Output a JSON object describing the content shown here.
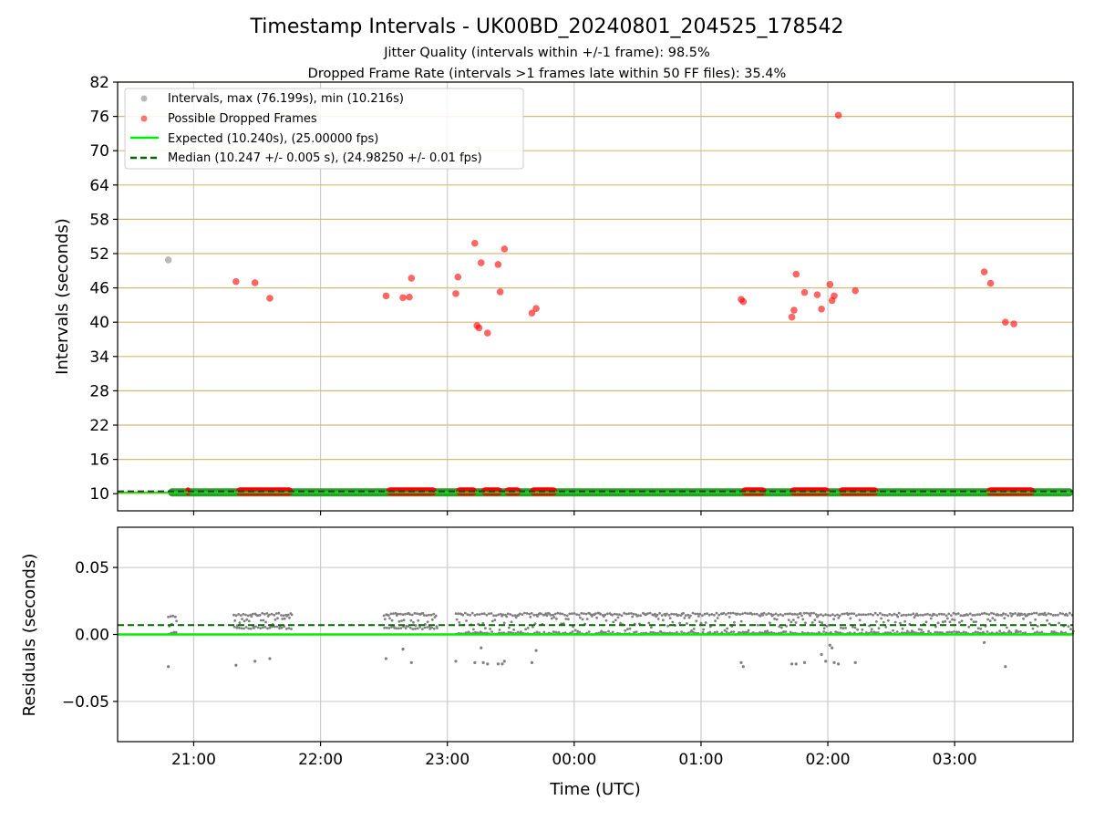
{
  "figure": {
    "title": "Timestamp Intervals - UK00BD_20240801_204525_178542",
    "subtitle1": "Jitter Quality (intervals within +/-1 frame): 98.5%",
    "subtitle2": "Dropped Frame Rate (intervals >1 frames late within 50 FF files): 35.4%",
    "xlabel": "Time (UTC)"
  },
  "colors": {
    "intervals": "#808080",
    "dropped": "#ff0000",
    "expected": "#00ee00",
    "median": "#006400",
    "hgrid": "#d9b978",
    "vgrid": "#cccccc",
    "green_band": "#2ca02c"
  },
  "chart_data": [
    {
      "type": "scatter",
      "ylabel": "Intervals (seconds)",
      "ylim": [
        7,
        82
      ],
      "yticks": [
        10,
        16,
        22,
        28,
        34,
        40,
        46,
        52,
        58,
        64,
        70,
        76,
        82
      ],
      "xlim": [
        "20:24",
        "03:56"
      ],
      "xticks": [
        "21:00",
        "22:00",
        "23:00",
        "00:00",
        "01:00",
        "02:00",
        "03:00"
      ],
      "grid": true,
      "legend_position": "upper-left",
      "legend": [
        "Intervals, max (76.199s), min (10.216s)",
        "Possible Dropped Frames",
        "Expected (10.240s), (25.00000 fps)",
        "Median (10.247 +/- 0.005 s), (24.98250 +/- 0.01 fps)"
      ],
      "expected": 10.24,
      "median": 10.247,
      "series": [
        {
          "name": "Intervals, max (76.199s), min (10.216s)",
          "points": [
            [
              "20:48",
              50.9
            ]
          ],
          "baseline_ranges": [
            [
              "20:48",
              "03:56",
              10.24
            ]
          ]
        },
        {
          "name": "Possible Dropped Frames",
          "points": [
            [
              "21:20",
              47.1
            ],
            [
              "21:29",
              46.9
            ],
            [
              "21:36",
              44.2
            ],
            [
              "22:31",
              44.6
            ],
            [
              "22:39",
              44.3
            ],
            [
              "22:42",
              44.4
            ],
            [
              "22:43",
              47.7
            ],
            [
              "23:04",
              45.0
            ],
            [
              "23:05",
              47.9
            ],
            [
              "23:13",
              53.8
            ],
            [
              "23:14",
              39.4
            ],
            [
              "23:15",
              39.0
            ],
            [
              "23:16",
              50.4
            ],
            [
              "23:19",
              38.1
            ],
            [
              "23:24",
              50.1
            ],
            [
              "23:25",
              45.3
            ],
            [
              "23:27",
              52.8
            ],
            [
              "23:40",
              41.6
            ],
            [
              "23:42",
              42.4
            ],
            [
              "01:19",
              44.0
            ],
            [
              "01:20",
              43.6
            ],
            [
              "01:43",
              40.9
            ],
            [
              "01:44",
              42.1
            ],
            [
              "01:45",
              48.4
            ],
            [
              "01:49",
              45.2
            ],
            [
              "01:55",
              44.8
            ],
            [
              "01:57",
              42.3
            ],
            [
              "02:01",
              46.6
            ],
            [
              "02:02",
              43.8
            ],
            [
              "02:03",
              44.6
            ],
            [
              "02:05",
              76.2
            ],
            [
              "02:13",
              45.5
            ],
            [
              "03:14",
              48.8
            ],
            [
              "03:17",
              46.8
            ],
            [
              "03:24",
              40.0
            ],
            [
              "03:28",
              39.7
            ]
          ],
          "baseline_ranges": [
            [
              "20:56",
              "20:58",
              10.4
            ],
            [
              "21:20",
              "21:47",
              10.4
            ],
            [
              "22:31",
              "22:55",
              10.4
            ],
            [
              "23:04",
              "23:14",
              10.4
            ],
            [
              "23:16",
              "23:26",
              10.4
            ],
            [
              "23:27",
              "23:35",
              10.4
            ],
            [
              "23:39",
              "23:52",
              10.4
            ],
            [
              "01:19",
              "01:31",
              10.4
            ],
            [
              "01:42",
              "02:01",
              10.4
            ],
            [
              "02:05",
              "02:24",
              10.4
            ],
            [
              "03:15",
              "03:38",
              10.4
            ]
          ]
        }
      ]
    },
    {
      "type": "scatter",
      "ylabel": "Residuals (seconds)",
      "ylim": [
        -0.08,
        0.08
      ],
      "yticks": [
        0.05,
        0.0,
        -0.05
      ],
      "ytick_labels": [
        "0.05",
        "0.00",
        "−0.05"
      ],
      "xlim": [
        "20:24",
        "03:56"
      ],
      "xticks": [
        "21:00",
        "22:00",
        "23:00",
        "00:00",
        "01:00",
        "02:00",
        "03:00"
      ],
      "grid": true,
      "expected": 0.0,
      "median": 0.007,
      "series": [
        {
          "name": "Residuals",
          "points": [
            [
              "20:48",
              -0.024
            ],
            [
              "21:20",
              -0.023
            ],
            [
              "21:29",
              -0.02
            ],
            [
              "21:36",
              -0.018
            ],
            [
              "22:31",
              -0.018
            ],
            [
              "22:39",
              -0.011
            ],
            [
              "22:43",
              -0.021
            ],
            [
              "23:04",
              -0.02
            ],
            [
              "23:13",
              -0.021
            ],
            [
              "23:16",
              -0.01
            ],
            [
              "23:17",
              -0.021
            ],
            [
              "23:19",
              -0.022
            ],
            [
              "23:24",
              -0.022
            ],
            [
              "23:26",
              -0.022
            ],
            [
              "23:27",
              -0.02
            ],
            [
              "23:40",
              -0.021
            ],
            [
              "23:42",
              -0.012
            ],
            [
              "01:19",
              -0.021
            ],
            [
              "01:20",
              -0.024
            ],
            [
              "01:43",
              -0.022
            ],
            [
              "01:45",
              -0.022
            ],
            [
              "01:49",
              -0.021
            ],
            [
              "01:57",
              -0.015
            ],
            [
              "01:59",
              -0.02
            ],
            [
              "02:01",
              -0.008
            ],
            [
              "02:02",
              -0.01
            ],
            [
              "02:03",
              -0.021
            ],
            [
              "02:05",
              -0.022
            ],
            [
              "02:13",
              -0.021
            ],
            [
              "03:14",
              -0.006
            ],
            [
              "03:24",
              -0.024
            ]
          ],
          "dense_ranges": [
            [
              "20:48",
              "20:52",
              0.0,
              0.014
            ],
            [
              "21:19",
              "21:47",
              0.004,
              0.016
            ],
            [
              "22:30",
              "22:55",
              0.004,
              0.016
            ],
            [
              "23:04",
              "03:56",
              0.0,
              0.016
            ]
          ]
        }
      ]
    }
  ]
}
